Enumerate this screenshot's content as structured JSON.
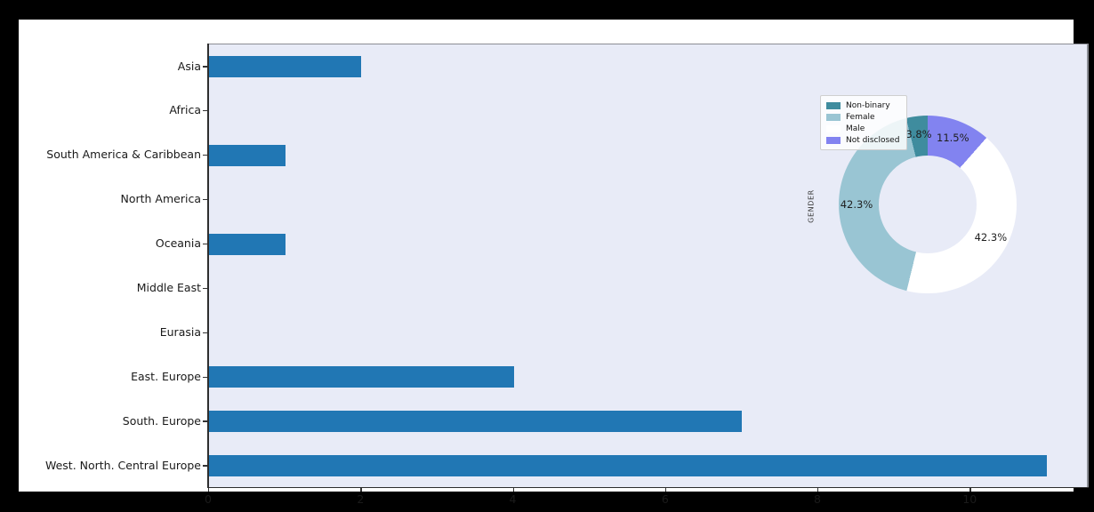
{
  "window": {
    "canvas_background": "#000000",
    "figure_background": "#ffffff"
  },
  "chart_data": [
    {
      "id": "regions_bar",
      "type": "bar",
      "orientation": "horizontal",
      "title": "",
      "xlabel": "",
      "ylabel": "",
      "categories": [
        "Asia",
        "Africa",
        "South America & Caribbean",
        "North America",
        "Oceania",
        "Middle East",
        "Eurasia",
        "East. Europe",
        "South. Europe",
        "West. North. Central Europe"
      ],
      "values": [
        2,
        0,
        1,
        0,
        1,
        0,
        0,
        4,
        7,
        11
      ],
      "xtick_labels": [
        "0",
        "2",
        "4",
        "6",
        "8",
        "10"
      ],
      "xtick_values": [
        0,
        2,
        4,
        6,
        8,
        10
      ],
      "xlim": [
        0,
        11.55
      ],
      "bar_color": "#2177b4",
      "plot_background": "#e8ebf7",
      "grid": false,
      "legend_position": "none"
    },
    {
      "id": "gender_donut",
      "type": "pie",
      "subtype": "donut",
      "axis_label": "GENDER",
      "slices": [
        {
          "label": "Non-binary",
          "pct": 3.8,
          "pct_label": "3.8%",
          "color": "#3f8c9e"
        },
        {
          "label": "Female",
          "pct": 42.3,
          "pct_label": "42.3%",
          "color": "#99c5d3"
        },
        {
          "label": "Male",
          "pct": 42.3,
          "pct_label": "42.3%",
          "color": "#ffffff"
        },
        {
          "label": "Not disclosed",
          "pct": 11.5,
          "pct_label": "11.5%",
          "color": "#8283f0"
        }
      ],
      "start_angle_deg": 90,
      "direction": "counterclockwise",
      "hole_ratio": 0.55,
      "hole_color": "#e8ebf7",
      "legend_position": "upper-left"
    }
  ]
}
